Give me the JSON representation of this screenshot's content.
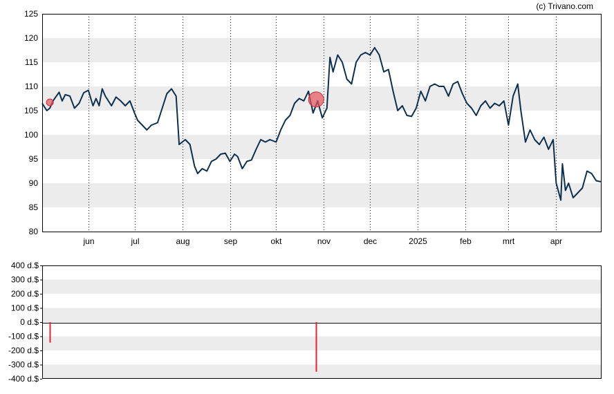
{
  "copyright": "(c) Trivano.com",
  "chart_data": [
    {
      "type": "line",
      "title": "",
      "xlabel": "",
      "ylabel": "",
      "ylim": [
        80,
        125
      ],
      "y_ticks": [
        80,
        85,
        90,
        95,
        100,
        105,
        110,
        115,
        120,
        125
      ],
      "x_tick_labels": [
        "jun",
        "jul",
        "aug",
        "sep",
        "okt",
        "nov",
        "dec",
        "2025",
        "feb",
        "mrt",
        "apr"
      ],
      "x_tick_dates": [
        "2024-06-01",
        "2024-07-01",
        "2024-08-01",
        "2024-09-01",
        "2024-10-01",
        "2024-11-01",
        "2024-12-01",
        "2025-01-01",
        "2025-02-01",
        "2025-03-01",
        "2025-04-01"
      ],
      "x_range": [
        "2024-05-02",
        "2025-04-30"
      ],
      "grid": {
        "horizontal_bands": true,
        "vertical_dotted": true
      },
      "line_color": "#0d2f4f",
      "band_color": "#ececec",
      "series": [
        {
          "values": [
            [
              "2024-05-02",
              106.5
            ],
            [
              "2024-05-05",
              105.0
            ],
            [
              "2024-05-07",
              105.5
            ],
            [
              "2024-05-09",
              107.0
            ],
            [
              "2024-05-13",
              108.8
            ],
            [
              "2024-05-15",
              107.0
            ],
            [
              "2024-05-17",
              108.3
            ],
            [
              "2024-05-20",
              108.0
            ],
            [
              "2024-05-23",
              105.5
            ],
            [
              "2024-05-26",
              106.5
            ],
            [
              "2024-05-29",
              108.7
            ],
            [
              "2024-06-01",
              109.2
            ],
            [
              "2024-06-04",
              106.0
            ],
            [
              "2024-06-06",
              107.5
            ],
            [
              "2024-06-08",
              106.0
            ],
            [
              "2024-06-10",
              109.5
            ],
            [
              "2024-06-12",
              108.0
            ],
            [
              "2024-06-16",
              106.0
            ],
            [
              "2024-06-19",
              107.8
            ],
            [
              "2024-06-22",
              107.0
            ],
            [
              "2024-06-25",
              106.0
            ],
            [
              "2024-06-28",
              107.0
            ],
            [
              "2024-07-01",
              104.5
            ],
            [
              "2024-07-03",
              103.0
            ],
            [
              "2024-07-06",
              102.0
            ],
            [
              "2024-07-09",
              101.0
            ],
            [
              "2024-07-12",
              102.0
            ],
            [
              "2024-07-16",
              102.5
            ],
            [
              "2024-07-19",
              105.5
            ],
            [
              "2024-07-22",
              108.5
            ],
            [
              "2024-07-25",
              109.5
            ],
            [
              "2024-07-28",
              108.0
            ],
            [
              "2024-07-30",
              98.0
            ],
            [
              "2024-08-03",
              99.0
            ],
            [
              "2024-08-06",
              98.0
            ],
            [
              "2024-08-09",
              93.5
            ],
            [
              "2024-08-11",
              92.0
            ],
            [
              "2024-08-14",
              93.0
            ],
            [
              "2024-08-17",
              92.5
            ],
            [
              "2024-08-20",
              94.5
            ],
            [
              "2024-08-23",
              95.0
            ],
            [
              "2024-08-26",
              96.0
            ],
            [
              "2024-08-29",
              96.2
            ],
            [
              "2024-09-01",
              94.5
            ],
            [
              "2024-09-04",
              96.0
            ],
            [
              "2024-09-06",
              95.5
            ],
            [
              "2024-09-09",
              93.0
            ],
            [
              "2024-09-12",
              94.5
            ],
            [
              "2024-09-15",
              94.8
            ],
            [
              "2024-09-18",
              97.0
            ],
            [
              "2024-09-21",
              99.0
            ],
            [
              "2024-09-24",
              98.5
            ],
            [
              "2024-09-27",
              99.0
            ],
            [
              "2024-10-01",
              98.5
            ],
            [
              "2024-10-04",
              101.0
            ],
            [
              "2024-10-07",
              103.0
            ],
            [
              "2024-10-10",
              104.0
            ],
            [
              "2024-10-13",
              106.5
            ],
            [
              "2024-10-16",
              107.5
            ],
            [
              "2024-10-19",
              107.0
            ],
            [
              "2024-10-22",
              109.0
            ],
            [
              "2024-10-25",
              104.5
            ],
            [
              "2024-10-28",
              107.0
            ],
            [
              "2024-10-31",
              103.5
            ],
            [
              "2024-11-03",
              105.5
            ],
            [
              "2024-11-05",
              116.0
            ],
            [
              "2024-11-07",
              113.0
            ],
            [
              "2024-11-10",
              116.5
            ],
            [
              "2024-11-13",
              115.0
            ],
            [
              "2024-11-16",
              111.5
            ],
            [
              "2024-11-19",
              110.5
            ],
            [
              "2024-11-22",
              115.0
            ],
            [
              "2024-11-25",
              116.5
            ],
            [
              "2024-11-28",
              117.0
            ],
            [
              "2024-12-01",
              116.5
            ],
            [
              "2024-12-04",
              118.0
            ],
            [
              "2024-12-07",
              116.5
            ],
            [
              "2024-12-10",
              113.0
            ],
            [
              "2024-12-13",
              113.5
            ],
            [
              "2024-12-16",
              109.0
            ],
            [
              "2024-12-19",
              105.0
            ],
            [
              "2024-12-22",
              106.0
            ],
            [
              "2024-12-25",
              104.0
            ],
            [
              "2024-12-28",
              103.8
            ],
            [
              "2024-12-31",
              105.5
            ],
            [
              "2025-01-03",
              109.0
            ],
            [
              "2025-01-06",
              107.0
            ],
            [
              "2025-01-09",
              110.0
            ],
            [
              "2025-01-12",
              110.5
            ],
            [
              "2025-01-15",
              110.0
            ],
            [
              "2025-01-18",
              110.0
            ],
            [
              "2025-01-21",
              108.0
            ],
            [
              "2025-01-24",
              110.5
            ],
            [
              "2025-01-27",
              111.0
            ],
            [
              "2025-01-30",
              108.5
            ],
            [
              "2025-02-02",
              106.5
            ],
            [
              "2025-02-05",
              105.5
            ],
            [
              "2025-02-08",
              104.0
            ],
            [
              "2025-02-11",
              106.0
            ],
            [
              "2025-02-14",
              107.0
            ],
            [
              "2025-02-17",
              105.5
            ],
            [
              "2025-02-20",
              106.5
            ],
            [
              "2025-02-23",
              106.0
            ],
            [
              "2025-02-26",
              107.0
            ],
            [
              "2025-03-01",
              102.0
            ],
            [
              "2025-03-04",
              108.0
            ],
            [
              "2025-03-07",
              110.5
            ],
            [
              "2025-03-09",
              105.0
            ],
            [
              "2025-03-12",
              98.5
            ],
            [
              "2025-03-15",
              101.0
            ],
            [
              "2025-03-18",
              99.0
            ],
            [
              "2025-03-21",
              98.0
            ],
            [
              "2025-03-24",
              99.5
            ],
            [
              "2025-03-27",
              97.0
            ],
            [
              "2025-03-30",
              99.0
            ],
            [
              "2025-04-01",
              90.0
            ],
            [
              "2025-04-04",
              86.5
            ],
            [
              "2025-04-05",
              94.0
            ],
            [
              "2025-04-07",
              88.5
            ],
            [
              "2025-04-09",
              90.0
            ],
            [
              "2025-04-12",
              87.0
            ],
            [
              "2025-04-15",
              88.0
            ],
            [
              "2025-04-18",
              89.0
            ],
            [
              "2025-04-21",
              92.5
            ],
            [
              "2025-04-24",
              92.0
            ],
            [
              "2025-04-27",
              90.5
            ],
            [
              "2025-04-30",
              90.3
            ]
          ]
        }
      ],
      "markers": [
        {
          "date": "2024-05-07",
          "value": 106.7,
          "size": "small",
          "color": "#e8525e"
        },
        {
          "date": "2024-10-27",
          "value": 107.3,
          "size": "large",
          "color": "#e8525e"
        }
      ]
    },
    {
      "type": "bar",
      "title": "",
      "xlabel": "",
      "ylabel": "",
      "ylim": [
        -400,
        400
      ],
      "y_ticks": [
        400,
        300,
        200,
        100,
        0,
        -100,
        -200,
        -300,
        -400
      ],
      "y_tick_labels": [
        "400 d.$",
        "300 d.$",
        "200 d.$",
        "100 d.$",
        "0 d.$",
        "-100 d.$",
        "-200 d.$",
        "-300 d.$",
        "-400 d.$"
      ],
      "bar_color": "#e8202e",
      "series": [
        {
          "values": [
            [
              "2024-05-07",
              -145
            ],
            [
              "2024-10-27",
              -350
            ]
          ]
        }
      ]
    }
  ]
}
